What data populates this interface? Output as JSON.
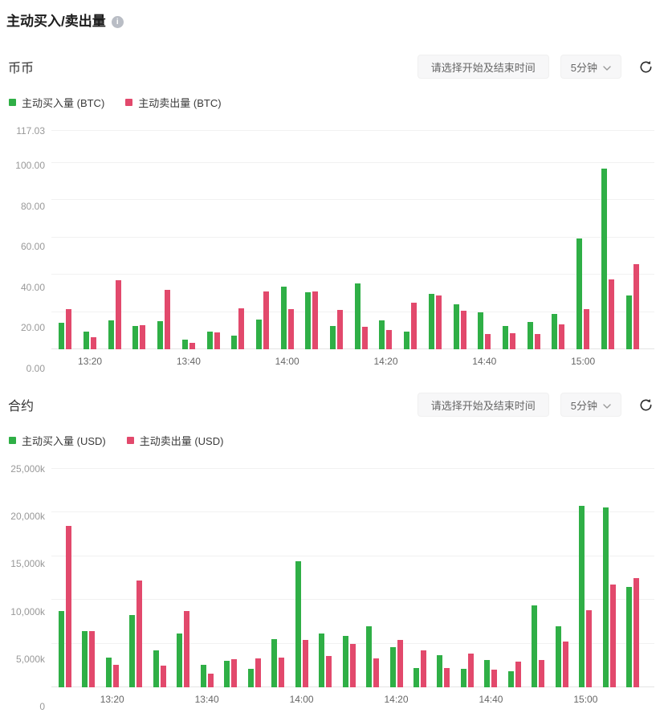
{
  "page_title": "主动买入/卖出量",
  "icons": {
    "info": "i",
    "chevron_down": "chevron-down",
    "refresh": "circular-refresh-arrow"
  },
  "colors": {
    "buy_green": "#2FAF46",
    "sell_red": "#E2496C",
    "button_bg": "#f7f7f8",
    "grid": "#f1f1f1"
  },
  "sections": {
    "spot": {
      "title": "币币",
      "date_picker_label": "请选择开始及结束时间",
      "interval": "5分钟",
      "legend_buy": "主动买入量 (BTC)",
      "legend_sell": "主动卖出量 (BTC)"
    },
    "futures": {
      "title": "合约",
      "date_picker_label": "请选择开始及结束时间",
      "interval": "5分钟",
      "legend_buy": "主动买入量 (USD)",
      "legend_sell": "主动卖出量 (USD)"
    }
  },
  "chart_data": [
    {
      "type": "bar",
      "title": "币币 主动买入/卖出量",
      "categories": [
        "13:15",
        "13:20",
        "13:25",
        "13:30",
        "13:35",
        "13:40",
        "13:45",
        "13:50",
        "13:55",
        "14:00",
        "14:05",
        "14:10",
        "14:15",
        "14:20",
        "14:25",
        "14:30",
        "14:35",
        "14:40",
        "14:45",
        "14:50",
        "14:55",
        "15:00",
        "15:05",
        "15:10"
      ],
      "series": [
        {
          "name": "主动买入量 (BTC)",
          "color": "#2FAF46",
          "values": [
            14,
            9.5,
            15.5,
            12.5,
            15,
            5,
            9.5,
            7.5,
            16,
            33.5,
            30.5,
            12.5,
            35.5,
            15.5,
            9.5,
            29.5,
            24,
            20,
            12.5,
            14.5,
            19,
            59.5,
            97,
            29
          ]
        },
        {
          "name": "主动卖出量 (BTC)",
          "color": "#E2496C",
          "values": [
            21.5,
            6.5,
            37,
            13,
            32,
            3.5,
            9,
            22,
            31,
            21.5,
            31,
            21,
            12,
            10.5,
            25,
            29,
            20.5,
            8,
            8.5,
            8,
            13.5,
            21.5,
            37.5,
            45.5
          ]
        }
      ],
      "xlabel": "",
      "ylabel": "",
      "ylim": [
        0,
        117.03
      ],
      "yticks": [
        0,
        20,
        40,
        60,
        80,
        100,
        117.03
      ],
      "ytick_labels": [
        "0.00",
        "20.00",
        "40.00",
        "60.00",
        "80.00",
        "100.00",
        "117.03"
      ],
      "xtick_labels": [
        "13:20",
        "13:40",
        "14:00",
        "14:20",
        "14:40",
        "15:00"
      ],
      "grid": "horizontal-only",
      "legend_position": "top-left"
    },
    {
      "type": "bar",
      "title": "合约 主动买入/卖出量",
      "categories": [
        "13:10",
        "13:15",
        "13:20",
        "13:25",
        "13:30",
        "13:35",
        "13:40",
        "13:45",
        "13:50",
        "13:55",
        "14:00",
        "14:05",
        "14:10",
        "14:15",
        "14:20",
        "14:25",
        "14:30",
        "14:35",
        "14:40",
        "14:45",
        "14:50",
        "14:55",
        "15:00",
        "15:05",
        "15:10"
      ],
      "series": [
        {
          "name": "主动买入量 (USD)",
          "color": "#2FAF46",
          "values": [
            8700,
            6400,
            3400,
            8300,
            4200,
            6200,
            2600,
            3000,
            2100,
            5500,
            14400,
            6200,
            5900,
            7000,
            4600,
            2200,
            3700,
            2100,
            3100,
            1800,
            9400,
            7000,
            20800,
            20600,
            11500
          ]
        },
        {
          "name": "主动卖出量 (USD)",
          "color": "#E2496C",
          "values": [
            18500,
            6400,
            2600,
            12200,
            2500,
            8700,
            1600,
            3200,
            3300,
            3400,
            5400,
            3600,
            5000,
            3300,
            5400,
            4200,
            2200,
            3900,
            2000,
            2900,
            3100,
            5200,
            8800,
            11800,
            12500
          ]
        }
      ],
      "xlabel": "",
      "ylabel": "",
      "ylim": [
        0,
        25000
      ],
      "yticks": [
        0,
        5000,
        10000,
        15000,
        20000,
        25000
      ],
      "ytick_labels": [
        "0",
        "5,000k",
        "10,000k",
        "15,000k",
        "20,000k",
        "25,000k"
      ],
      "xtick_labels": [
        "13:20",
        "13:40",
        "14:00",
        "14:20",
        "14:40",
        "15:00"
      ],
      "grid": "horizontal-only",
      "legend_position": "top-left"
    }
  ]
}
